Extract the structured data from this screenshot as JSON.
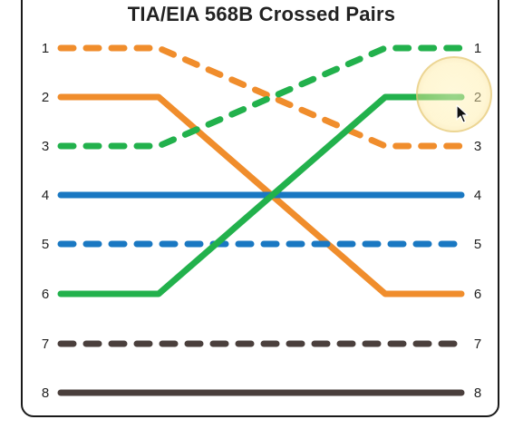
{
  "title": "TIA/EIA 568B Crossed Pairs",
  "colors": {
    "orange": "#f08d2c",
    "green": "#22b14c",
    "blue": "#1a78c2",
    "brown": "#4a3f3c"
  },
  "wires": [
    {
      "left_pin": "1",
      "right_pin": "3",
      "color": "orange",
      "style": "dashed"
    },
    {
      "left_pin": "2",
      "right_pin": "6",
      "color": "orange",
      "style": "solid"
    },
    {
      "left_pin": "3",
      "right_pin": "1",
      "color": "green",
      "style": "dashed"
    },
    {
      "left_pin": "4",
      "right_pin": "4",
      "color": "blue",
      "style": "solid"
    },
    {
      "left_pin": "5",
      "right_pin": "5",
      "color": "blue",
      "style": "dashed"
    },
    {
      "left_pin": "6",
      "right_pin": "2",
      "color": "green",
      "style": "solid"
    },
    {
      "left_pin": "7",
      "right_pin": "7",
      "color": "brown",
      "style": "dashed"
    },
    {
      "left_pin": "8",
      "right_pin": "8",
      "color": "brown",
      "style": "solid"
    }
  ],
  "left_pins": [
    "1",
    "2",
    "3",
    "4",
    "5",
    "6",
    "7",
    "8"
  ],
  "right_pins": [
    "1",
    "2",
    "3",
    "4",
    "5",
    "6",
    "7",
    "8"
  ],
  "cursor_icon": "arrow-cursor-icon",
  "highlight_icon": "cursor-highlight-icon"
}
